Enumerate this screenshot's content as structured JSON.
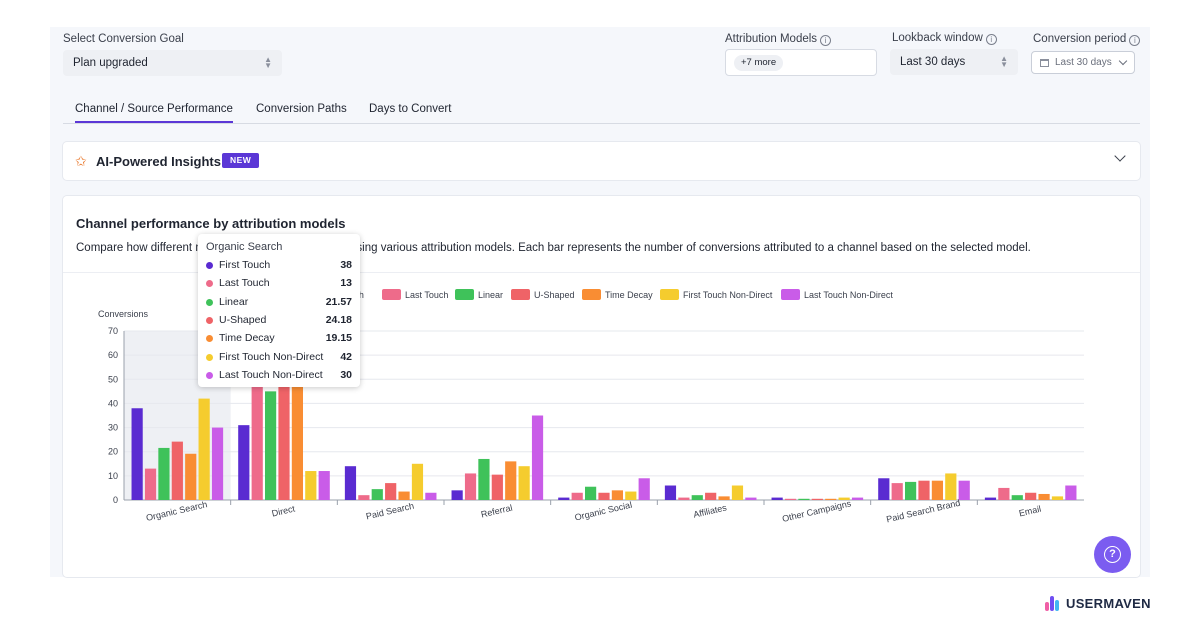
{
  "filters": {
    "goal_label": "Select Conversion Goal",
    "goal_value": "Plan upgraded",
    "attribution_label": "Attribution Models",
    "attribution_chip": "+7 more",
    "lookback_label": "Lookback window",
    "lookback_value": "Last 30 days",
    "period_label": "Conversion period",
    "period_value": "Last 30 days"
  },
  "tabs": [
    "Channel / Source Performance",
    "Conversion Paths",
    "Days to Convert"
  ],
  "insights": {
    "title": "AI-Powered Insights",
    "badge": "NEW"
  },
  "chart_card": {
    "title": "Channel performance by attribution models",
    "description": "Compare how different models distribute conversions using various attribution models. Each bar represents the number of conversions attributed to a channel based on the selected model."
  },
  "tooltip": {
    "title": "Organic Search",
    "rows": [
      {
        "name": "First Touch",
        "value": "38",
        "color": "#5a2bd1"
      },
      {
        "name": "Last Touch",
        "value": "13",
        "color": "#ee6b8a"
      },
      {
        "name": "Linear",
        "value": "21.57",
        "color": "#3fc25a"
      },
      {
        "name": "U-Shaped",
        "value": "24.18",
        "color": "#ef6367"
      },
      {
        "name": "Time Decay",
        "value": "19.15",
        "color": "#f98d33"
      },
      {
        "name": "First Touch Non-Direct",
        "value": "42",
        "color": "#f5cc2e"
      },
      {
        "name": "Last Touch Non-Direct",
        "value": "30",
        "color": "#c95ce8"
      }
    ]
  },
  "brand": "USERMAVEN",
  "colors": {
    "accent": "#5b37d6",
    "help": "#7b5cf0"
  },
  "chart_data": {
    "type": "bar",
    "title": "Channel performance by attribution models",
    "ylabel": "Conversions",
    "ylim": [
      0,
      70
    ],
    "yticks": [
      0,
      10,
      20,
      30,
      40,
      50,
      60,
      70
    ],
    "grid": true,
    "legend_position": "top",
    "categories": [
      "Organic Search",
      "Direct",
      "Paid Search",
      "Referral",
      "Organic Social",
      "Affiliates",
      "Other Campaigns",
      "Paid Search Brand",
      "Email"
    ],
    "series": [
      {
        "name": "First Touch",
        "color": "#5a2bd1",
        "values": [
          38,
          31,
          14,
          4,
          1,
          6,
          1,
          9,
          1
        ]
      },
      {
        "name": "Last Touch",
        "color": "#ee6b8a",
        "values": [
          13,
          48,
          2,
          11,
          3,
          1,
          0.5,
          7,
          5
        ]
      },
      {
        "name": "Linear",
        "color": "#3fc25a",
        "values": [
          21.57,
          45,
          4.5,
          17,
          5.5,
          2,
          0.5,
          7.5,
          2
        ]
      },
      {
        "name": "U-Shaped",
        "color": "#ef6367",
        "values": [
          24.18,
          48,
          7,
          10.5,
          3,
          3,
          0.5,
          8,
          3
        ]
      },
      {
        "name": "Time Decay",
        "color": "#f98d33",
        "values": [
          19.15,
          48,
          3.5,
          16,
          4,
          1.5,
          0.5,
          8,
          2.5
        ]
      },
      {
        "name": "First Touch Non-Direct",
        "color": "#f5cc2e",
        "values": [
          42,
          12,
          15,
          14,
          3.5,
          6,
          1,
          11,
          1.5
        ]
      },
      {
        "name": "Last Touch Non-Direct",
        "color": "#c95ce8",
        "values": [
          30,
          12,
          3,
          35,
          9,
          1,
          1,
          8,
          6
        ]
      }
    ]
  }
}
